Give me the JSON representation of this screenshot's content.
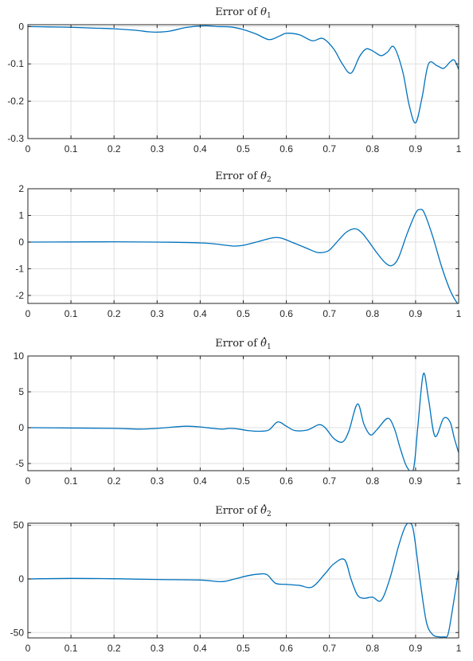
{
  "colors": {
    "series": "#0072BD",
    "axes": "#262626",
    "grid": "#dfdfdf"
  },
  "chart_data": [
    {
      "type": "line",
      "title_prefix": "Error of",
      "title_symbol": "θ",
      "title_subscript": "1",
      "title_dot": false,
      "xlim": [
        0,
        1
      ],
      "ylim": [
        -0.3,
        0.005
      ],
      "xticks": [
        0,
        0.1,
        0.2,
        0.3,
        0.4,
        0.5,
        0.6,
        0.7,
        0.8,
        0.9,
        1
      ],
      "xtick_labels": [
        "0",
        "0.1",
        "0.2",
        "0.3",
        "0.4",
        "0.5",
        "0.6",
        "0.7",
        "0.8",
        "0.9",
        "1"
      ],
      "yticks": [
        -0.3,
        -0.2,
        -0.1,
        0
      ],
      "ytick_labels": [
        "-0.3",
        "-0.2",
        "-0.1",
        "0"
      ],
      "grid": true,
      "series": [
        {
          "x": [
            0,
            0.05,
            0.1,
            0.15,
            0.2,
            0.25,
            0.28,
            0.3,
            0.33,
            0.37,
            0.41,
            0.44,
            0.47,
            0.5,
            0.53,
            0.56,
            0.585,
            0.6,
            0.63,
            0.66,
            0.685,
            0.71,
            0.73,
            0.75,
            0.77,
            0.785,
            0.8,
            0.82,
            0.835,
            0.85,
            0.87,
            0.885,
            0.9,
            0.915,
            0.93,
            0.95,
            0.965,
            0.98,
            0.99,
            1
          ],
          "y": [
            0,
            -0.001,
            -0.002,
            -0.004,
            -0.006,
            -0.01,
            -0.014,
            -0.015,
            -0.012,
            -0.002,
            0.002,
            0,
            -0.001,
            -0.008,
            -0.02,
            -0.035,
            -0.025,
            -0.018,
            -0.022,
            -0.038,
            -0.032,
            -0.06,
            -0.1,
            -0.125,
            -0.08,
            -0.06,
            -0.065,
            -0.078,
            -0.068,
            -0.055,
            -0.12,
            -0.21,
            -0.258,
            -0.19,
            -0.1,
            -0.105,
            -0.112,
            -0.095,
            -0.09,
            -0.115
          ]
        }
      ]
    },
    {
      "type": "line",
      "title_prefix": "Error of",
      "title_symbol": "θ",
      "title_subscript": "2",
      "title_dot": false,
      "xlim": [
        0,
        1
      ],
      "ylim": [
        -2.3,
        2
      ],
      "xticks": [
        0,
        0.1,
        0.2,
        0.3,
        0.4,
        0.5,
        0.6,
        0.7,
        0.8,
        0.9,
        1
      ],
      "xtick_labels": [
        "0",
        "0.1",
        "0.2",
        "0.3",
        "0.4",
        "0.5",
        "0.6",
        "0.7",
        "0.8",
        "0.9",
        "1"
      ],
      "yticks": [
        -2,
        -1,
        0,
        1,
        2
      ],
      "ytick_labels": [
        "-2",
        "-1",
        "0",
        "1",
        "2"
      ],
      "grid": true,
      "series": [
        {
          "x": [
            0,
            0.1,
            0.2,
            0.3,
            0.35,
            0.4,
            0.43,
            0.46,
            0.48,
            0.5,
            0.53,
            0.56,
            0.575,
            0.59,
            0.62,
            0.65,
            0.67,
            0.685,
            0.7,
            0.72,
            0.74,
            0.76,
            0.775,
            0.79,
            0.81,
            0.83,
            0.845,
            0.86,
            0.88,
            0.9,
            0.91,
            0.92,
            0.94,
            0.96,
            0.98,
            0.995,
            1
          ],
          "y": [
            0,
            0.005,
            0.01,
            0,
            -0.01,
            -0.03,
            -0.06,
            -0.12,
            -0.15,
            -0.12,
            0,
            0.13,
            0.17,
            0.14,
            -0.05,
            -0.25,
            -0.38,
            -0.39,
            -0.3,
            0.05,
            0.38,
            0.5,
            0.35,
            0.05,
            -0.4,
            -0.78,
            -0.88,
            -0.6,
            0.3,
            1.08,
            1.22,
            1.1,
            0.2,
            -0.9,
            -1.8,
            -2.25,
            -2.3
          ]
        }
      ]
    },
    {
      "type": "line",
      "title_prefix": "Error of",
      "title_symbol": "θ",
      "title_subscript": "1",
      "title_dot": true,
      "xlim": [
        0,
        1
      ],
      "ylim": [
        -6,
        10
      ],
      "xticks": [
        0,
        0.1,
        0.2,
        0.3,
        0.4,
        0.5,
        0.6,
        0.7,
        0.8,
        0.9,
        1
      ],
      "xtick_labels": [
        "0",
        "0.1",
        "0.2",
        "0.3",
        "0.4",
        "0.5",
        "0.6",
        "0.7",
        "0.8",
        "0.9",
        "1"
      ],
      "yticks": [
        -5,
        0,
        5,
        10
      ],
      "ytick_labels": [
        "-5",
        "0",
        "5",
        "10"
      ],
      "grid": true,
      "series": [
        {
          "x": [
            0,
            0.1,
            0.2,
            0.26,
            0.3,
            0.34,
            0.37,
            0.4,
            0.43,
            0.45,
            0.47,
            0.49,
            0.51,
            0.54,
            0.56,
            0.58,
            0.6,
            0.62,
            0.65,
            0.675,
            0.69,
            0.71,
            0.73,
            0.745,
            0.765,
            0.78,
            0.795,
            0.81,
            0.835,
            0.85,
            0.865,
            0.88,
            0.895,
            0.905,
            0.918,
            0.93,
            0.945,
            0.965,
            0.98,
            0.99,
            1
          ],
          "y": [
            0,
            -0.05,
            -0.1,
            -0.2,
            -0.1,
            0.1,
            0.2,
            0.1,
            -0.1,
            -0.2,
            -0.1,
            -0.2,
            -0.4,
            -0.5,
            -0.3,
            0.8,
            0.2,
            -0.4,
            -0.3,
            0.4,
            0,
            -1.5,
            -2,
            -0.5,
            3.3,
            0.5,
            -1,
            -0.3,
            1.3,
            0,
            -3,
            -5.5,
            -5.8,
            0,
            7.5,
            4,
            -1.2,
            1.3,
            0.8,
            -1.5,
            -3.5
          ]
        }
      ]
    },
    {
      "type": "line",
      "title_prefix": "Error of",
      "title_symbol": "θ",
      "title_subscript": "2",
      "title_dot": true,
      "xlim": [
        0,
        1
      ],
      "ylim": [
        -55,
        52
      ],
      "xticks": [
        0,
        0.1,
        0.2,
        0.3,
        0.4,
        0.5,
        0.6,
        0.7,
        0.8,
        0.9,
        1
      ],
      "xtick_labels": [
        "0",
        "0.1",
        "0.2",
        "0.3",
        "0.4",
        "0.5",
        "0.6",
        "0.7",
        "0.8",
        "0.9",
        "1"
      ],
      "yticks": [
        -50,
        0,
        50
      ],
      "ytick_labels": [
        "-50",
        "0",
        "50"
      ],
      "grid": true,
      "series": [
        {
          "x": [
            0,
            0.1,
            0.2,
            0.3,
            0.4,
            0.45,
            0.48,
            0.51,
            0.535,
            0.555,
            0.575,
            0.6,
            0.63,
            0.66,
            0.69,
            0.71,
            0.735,
            0.75,
            0.765,
            0.78,
            0.8,
            0.82,
            0.84,
            0.86,
            0.875,
            0.885,
            0.895,
            0.91,
            0.925,
            0.94,
            0.955,
            0.965,
            0.975,
            0.985,
            1
          ],
          "y": [
            0,
            0.5,
            0.2,
            -0.5,
            -1,
            -2.5,
            0,
            3,
            4.5,
            4,
            -4,
            -5,
            -6,
            -7.5,
            5,
            14,
            18,
            0,
            -15,
            -18,
            -17,
            -20,
            0,
            30,
            48,
            52,
            45,
            0,
            -40,
            -52,
            -54,
            -54,
            -52,
            -30,
            8
          ]
        }
      ]
    }
  ]
}
